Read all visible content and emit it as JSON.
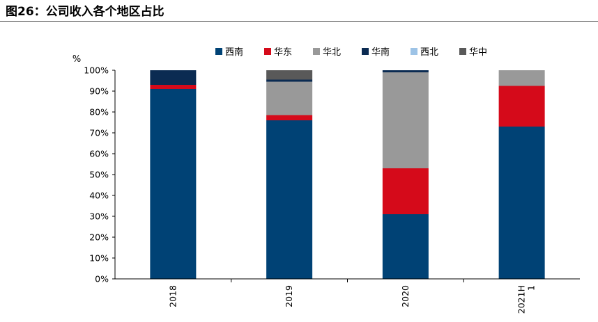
{
  "figure": {
    "title": "图26：公司收入各个地区占比"
  },
  "chart_data": {
    "type": "bar",
    "stacked": true,
    "title": "",
    "xlabel": "",
    "ylabel": "%",
    "ylim": [
      0,
      100
    ],
    "y_ticks": [
      "0%",
      "10%",
      "20%",
      "30%",
      "40%",
      "50%",
      "60%",
      "70%",
      "80%",
      "90%",
      "100%"
    ],
    "grid": false,
    "legend_position": "top",
    "categories": [
      "2018",
      "2019",
      "2020",
      "2021H1"
    ],
    "series": [
      {
        "name": "西南",
        "color": "#004275",
        "values": [
          91,
          76,
          31,
          73
        ]
      },
      {
        "name": "华东",
        "color": "#d50a1a",
        "values": [
          2,
          2.5,
          22,
          19.5
        ]
      },
      {
        "name": "华北",
        "color": "#999999",
        "values": [
          0,
          16,
          46,
          7.5
        ]
      },
      {
        "name": "华南",
        "color": "#0b2b52",
        "values": [
          7,
          1,
          1,
          0
        ]
      },
      {
        "name": "西北",
        "color": "#9dc3e6",
        "values": [
          0,
          0,
          0,
          0
        ]
      },
      {
        "name": "华中",
        "color": "#595959",
        "values": [
          0,
          4.5,
          0,
          0
        ]
      }
    ]
  }
}
